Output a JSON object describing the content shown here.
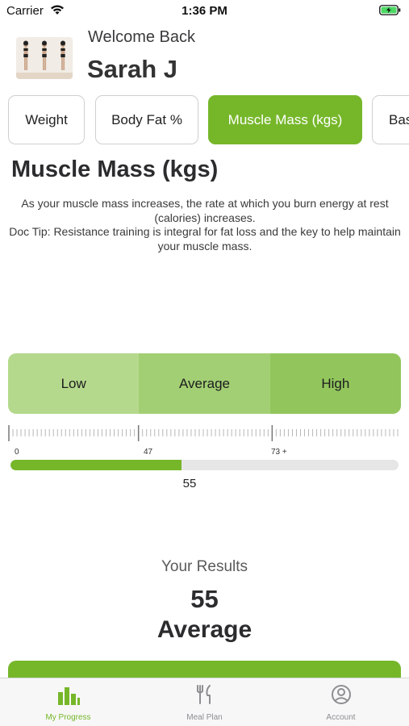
{
  "status_bar": {
    "carrier": "Carrier",
    "time": "1:36 PM",
    "wifi_icon": "wifi-icon",
    "battery_icon": "battery-charging-icon"
  },
  "header": {
    "welcome": "Welcome Back",
    "user_name": "Sarah J",
    "avatar_icon": "body-progress-photos"
  },
  "tabs": [
    {
      "label": "Weight",
      "active": false
    },
    {
      "label": "Body Fat %",
      "active": false
    },
    {
      "label": "Muscle Mass (kgs)",
      "active": true
    },
    {
      "label": "Bas",
      "active": false
    }
  ],
  "section": {
    "title": "Muscle Mass (kgs)",
    "description_1": "As your muscle mass increases, the rate at which you burn energy at rest (calories) increases.",
    "description_2": "Doc Tip: Resistance training is integral for fat loss and the key to help maintain your muscle mass."
  },
  "ranges": {
    "low": "Low",
    "average": "Average",
    "high": "High"
  },
  "scale": {
    "tick_0": "0",
    "tick_1": "47",
    "tick_2": "73 +",
    "value": 55,
    "value_label": "55",
    "fill_fraction": 0.44
  },
  "results": {
    "label": "Your Results",
    "value": "55",
    "category": "Average"
  },
  "tab_bar": [
    {
      "label": "My Progress",
      "icon": "bar-chart-icon",
      "active": true
    },
    {
      "label": "Meal Plan",
      "icon": "fork-knife-icon",
      "active": false
    },
    {
      "label": "Account",
      "icon": "user-circle-icon",
      "active": false
    }
  ],
  "colors": {
    "accent": "#76b72a",
    "range_low": "#b5d98c",
    "range_average": "#a3cf74",
    "range_high": "#92c65d"
  }
}
